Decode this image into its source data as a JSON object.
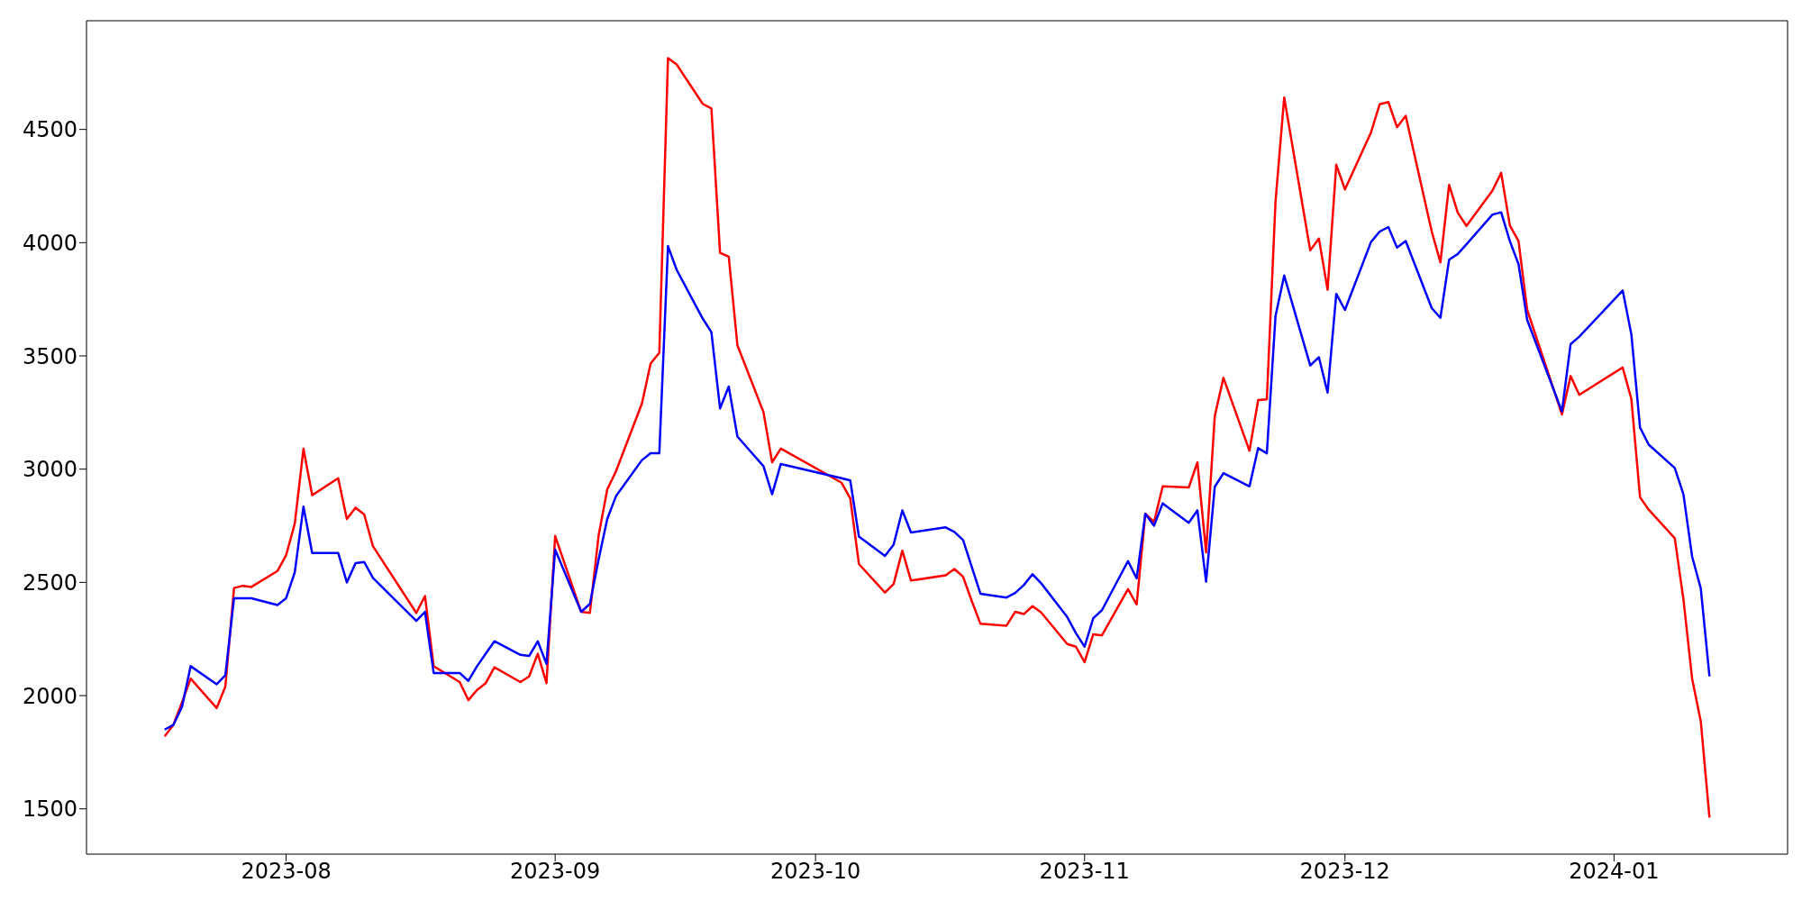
{
  "chart_data": {
    "type": "line",
    "x": [
      "2023-07-18",
      "2023-07-19",
      "2023-07-20",
      "2023-07-21",
      "2023-07-24",
      "2023-07-25",
      "2023-07-26",
      "2023-07-27",
      "2023-07-28",
      "2023-07-31",
      "2023-08-01",
      "2023-08-02",
      "2023-08-03",
      "2023-08-04",
      "2023-08-07",
      "2023-08-08",
      "2023-08-09",
      "2023-08-10",
      "2023-08-11",
      "2023-08-16",
      "2023-08-17",
      "2023-08-18",
      "2023-08-21",
      "2023-08-22",
      "2023-08-23",
      "2023-08-24",
      "2023-08-25",
      "2023-08-28",
      "2023-08-29",
      "2023-08-30",
      "2023-08-31",
      "2023-09-01",
      "2023-09-04",
      "2023-09-05",
      "2023-09-06",
      "2023-09-07",
      "2023-09-08",
      "2023-09-11",
      "2023-09-12",
      "2023-09-13",
      "2023-09-14",
      "2023-09-15",
      "2023-09-18",
      "2023-09-19",
      "2023-09-20",
      "2023-09-21",
      "2023-09-22",
      "2023-09-25",
      "2023-09-26",
      "2023-09-27",
      "2023-10-04",
      "2023-10-05",
      "2023-10-06",
      "2023-10-09",
      "2023-10-10",
      "2023-10-11",
      "2023-10-12",
      "2023-10-16",
      "2023-10-17",
      "2023-10-18",
      "2023-10-19",
      "2023-10-20",
      "2023-10-23",
      "2023-10-24",
      "2023-10-25",
      "2023-10-26",
      "2023-10-27",
      "2023-10-30",
      "2023-10-31",
      "2023-11-01",
      "2023-11-02",
      "2023-11-03",
      "2023-11-06",
      "2023-11-07",
      "2023-11-08",
      "2023-11-09",
      "2023-11-10",
      "2023-11-13",
      "2023-11-14",
      "2023-11-15",
      "2023-11-16",
      "2023-11-17",
      "2023-11-20",
      "2023-11-21",
      "2023-11-22",
      "2023-11-23",
      "2023-11-24",
      "2023-11-27",
      "2023-11-28",
      "2023-11-29",
      "2023-11-30",
      "2023-12-01",
      "2023-12-04",
      "2023-12-05",
      "2023-12-06",
      "2023-12-07",
      "2023-12-08",
      "2023-12-11",
      "2023-12-12",
      "2023-12-13",
      "2023-12-14",
      "2023-12-15",
      "2023-12-18",
      "2023-12-19",
      "2023-12-20",
      "2023-12-21",
      "2023-12-22",
      "2023-12-26",
      "2023-12-27",
      "2023-12-28",
      "2024-01-02",
      "2024-01-03",
      "2024-01-04",
      "2024-01-05",
      "2024-01-08",
      "2024-01-09",
      "2024-01-10",
      "2024-01-11",
      "2024-01-12"
    ],
    "series": [
      {
        "color": "#ff0000",
        "values": [
          1820,
          1870,
          1970,
          2075,
          1945,
          2040,
          2475,
          2485,
          2480,
          2550,
          2620,
          2760,
          3090,
          2885,
          2960,
          2780,
          2830,
          2800,
          2660,
          2365,
          2440,
          2130,
          2060,
          1980,
          2025,
          2055,
          2125,
          2060,
          2085,
          2185,
          2055,
          2705,
          2370,
          2365,
          2705,
          2910,
          2990,
          3290,
          3466,
          3514,
          4815,
          4787,
          4613,
          4593,
          3955,
          3938,
          3547,
          3252,
          3030,
          3091,
          2940,
          2871,
          2581,
          2455,
          2493,
          2640,
          2508,
          2531,
          2559,
          2525,
          2418,
          2317,
          2309,
          2370,
          2360,
          2395,
          2367,
          2228,
          2216,
          2148,
          2271,
          2266,
          2470,
          2402,
          2803,
          2766,
          2924,
          2919,
          3030,
          2632,
          3234,
          3403,
          3081,
          3305,
          3308,
          4182,
          4641,
          3966,
          4018,
          3792,
          4344,
          4235,
          4487,
          4611,
          4621,
          4510,
          4560,
          4049,
          3913,
          4255,
          4132,
          4074,
          4230,
          4308,
          4076,
          4007,
          3703,
          3242,
          3411,
          3328,
          3449,
          3310,
          2876,
          2821,
          2695,
          2425,
          2075,
          1886,
          1462
        ]
      },
      {
        "color": "#0000ff",
        "values": [
          1850,
          1870,
          1950,
          2130,
          2050,
          2090,
          2430,
          2430,
          2430,
          2400,
          2430,
          2545,
          2835,
          2630,
          2630,
          2500,
          2585,
          2590,
          2520,
          2330,
          2370,
          2100,
          2100,
          2065,
          2130,
          2185,
          2240,
          2180,
          2175,
          2240,
          2140,
          2645,
          2370,
          2405,
          2600,
          2780,
          2880,
          3040,
          3070,
          3070,
          3985,
          3880,
          3665,
          3605,
          3268,
          3365,
          3144,
          3013,
          2889,
          3023,
          2960,
          2950,
          2702,
          2617,
          2667,
          2818,
          2720,
          2743,
          2723,
          2687,
          2569,
          2450,
          2433,
          2453,
          2488,
          2536,
          2496,
          2347,
          2276,
          2216,
          2342,
          2377,
          2594,
          2518,
          2803,
          2750,
          2849,
          2763,
          2818,
          2503,
          2922,
          2982,
          2924,
          3093,
          3070,
          3676,
          3855,
          3458,
          3494,
          3338,
          3774,
          3703,
          4003,
          4049,
          4069,
          3978,
          4007,
          3711,
          3668,
          3925,
          3950,
          3993,
          4124,
          4134,
          4007,
          3905,
          3658,
          3255,
          3552,
          3585,
          3789,
          3595,
          3184,
          3108,
          3005,
          2889,
          2614,
          2473,
          2085
        ]
      }
    ],
    "xlim": [
      "2023-07-09",
      "2024-01-21"
    ],
    "xticks": [
      "2023-08",
      "2023-09",
      "2023-10",
      "2023-11",
      "2023-12",
      "2024-01"
    ],
    "ylim": [
      1300,
      4980
    ],
    "yticks": [
      1500,
      2000,
      2500,
      3000,
      3500,
      4000,
      4500
    ]
  }
}
